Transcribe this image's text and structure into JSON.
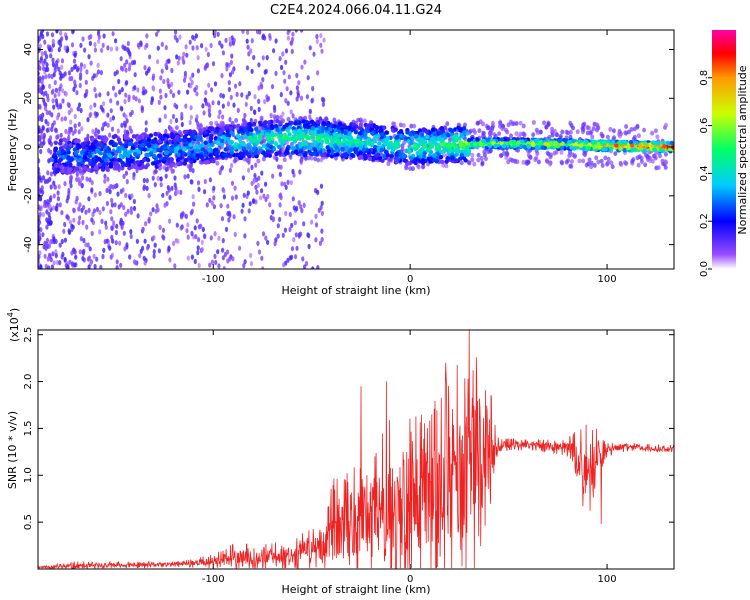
{
  "title": "C2E4.2024.066.04.11.G24",
  "chart_data": [
    {
      "type": "heatmap",
      "name": "spectrogram",
      "xlabel": "Height of straight line (km)",
      "ylabel": "Frequency (Hz)",
      "xlim": [
        -189,
        134
      ],
      "ylim": [
        -50,
        48
      ],
      "x_ticks": [
        -100,
        0,
        100
      ],
      "x_tick_labels": [
        "-100",
        "0",
        "100"
      ],
      "y_ticks": [
        -40,
        -20,
        0,
        20,
        40
      ],
      "y_tick_labels": [
        "-40",
        "-20",
        "0",
        "20",
        "40"
      ],
      "colorbar": {
        "label": "Normalized spectral amplitude",
        "range": [
          0.0,
          1.0
        ],
        "ticks": [
          0.0,
          0.2,
          0.4,
          0.6,
          0.8
        ],
        "tick_labels": [
          "0.0",
          "0.2",
          "0.4",
          "0.6",
          "0.8"
        ],
        "colormap": [
          "#ffffff",
          "#7f00ff",
          "#0000ff",
          "#00ffff",
          "#00ff00",
          "#ffff00",
          "#ff0000",
          "#ff00bf"
        ]
      },
      "ridge": {
        "x": [
          -180,
          -160,
          -140,
          -120,
          -100,
          -80,
          -60,
          -40,
          -20,
          0,
          20,
          30,
          50,
          80,
          100,
          134
        ],
        "freq": [
          -4,
          -3,
          -2,
          -1,
          1,
          3,
          4,
          3,
          2,
          0,
          1,
          1.5,
          1.5,
          1,
          0.5,
          0
        ],
        "amplitude": [
          0.25,
          0.3,
          0.3,
          0.3,
          0.35,
          0.45,
          0.5,
          0.45,
          0.4,
          0.45,
          0.5,
          0.6,
          0.6,
          0.7,
          0.85,
          0.95
        ]
      }
    },
    {
      "type": "line",
      "name": "snr",
      "xlabel": "Height of straight line (km)",
      "ylabel": "SNR (10 * v/v)",
      "y_scale_label": "(x10",
      "y_scale_exp": "4",
      "xlim": [
        -189,
        134
      ],
      "ylim": [
        0,
        2.55
      ],
      "x_ticks": [
        -100,
        0,
        100
      ],
      "x_tick_labels": [
        "-100",
        "0",
        "100"
      ],
      "y_ticks": [
        0.5,
        1.0,
        1.5,
        2.0,
        2.5
      ],
      "y_tick_labels": [
        "0.5",
        "1.0",
        "1.5",
        "2.0",
        "2.5"
      ],
      "color": "#ee2222",
      "envelope": {
        "x": [
          -189,
          -170,
          -120,
          -100,
          -90,
          -80,
          -60,
          -45,
          -40,
          -30,
          -20,
          -10,
          0,
          10,
          20,
          30,
          38,
          45,
          60,
          80,
          85,
          90,
          95,
          100,
          110,
          134
        ],
        "base": [
          0.02,
          0.03,
          0.05,
          0.08,
          0.12,
          0.12,
          0.15,
          0.25,
          0.4,
          0.45,
          0.55,
          0.6,
          0.7,
          0.8,
          0.9,
          1.0,
          1.3,
          1.32,
          1.33,
          1.3,
          1.2,
          1.0,
          1.2,
          1.28,
          1.3,
          1.28
        ],
        "spread": [
          0.01,
          0.05,
          0.03,
          0.08,
          0.15,
          0.15,
          0.15,
          0.3,
          0.55,
          0.65,
          0.8,
          1.0,
          1.0,
          1.1,
          1.2,
          1.3,
          1.0,
          0.08,
          0.06,
          0.1,
          0.3,
          0.55,
          0.3,
          0.08,
          0.05,
          0.04
        ]
      },
      "peaks": [
        {
          "x": 30,
          "y": 2.55
        },
        {
          "x": 18,
          "y": 2.2
        },
        {
          "x": -12,
          "y": 2.0
        },
        {
          "x": -25,
          "y": 1.95
        },
        {
          "x": 97,
          "y": 0.48
        }
      ]
    }
  ]
}
